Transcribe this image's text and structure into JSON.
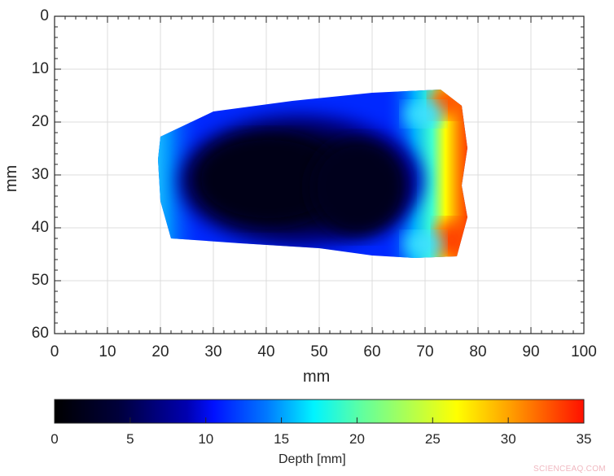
{
  "chart_data": {
    "type": "heatmap",
    "title": "",
    "xlabel": "mm",
    "ylabel": "mm",
    "xlim": [
      0,
      100
    ],
    "ylim": [
      0,
      60
    ],
    "y_reversed": true,
    "grid": true,
    "x_ticks": [
      "0",
      "10",
      "20",
      "30",
      "40",
      "50",
      "60",
      "70",
      "80",
      "90",
      "100"
    ],
    "y_ticks": [
      "0",
      "10",
      "20",
      "30",
      "40",
      "50",
      "60"
    ],
    "colorbar": {
      "label": "Depth [mm]",
      "range": [
        0,
        35
      ],
      "ticks": [
        "0",
        "5",
        "10",
        "15",
        "20",
        "25",
        "30",
        "35"
      ],
      "colormap": "jet-like (black at 0 → blue → cyan → yellow → red at 35)",
      "position": "bottom"
    },
    "region": {
      "description": "Irregular depth map of a defect; deep (near 0 mm, black) core ~x 25–65 mm, y 20–42 mm; edges shallow (blue/cyan); right edge ~x 72–78 mm reaches 30–35 mm (red/orange)",
      "outline_mm": [
        [
          20,
          23
        ],
        [
          30,
          18
        ],
        [
          45,
          16
        ],
        [
          60,
          14.5
        ],
        [
          73,
          14
        ],
        [
          77,
          17
        ],
        [
          78,
          25
        ],
        [
          77,
          32
        ],
        [
          78,
          38
        ],
        [
          76,
          45
        ],
        [
          68,
          46
        ],
        [
          60,
          45.5
        ],
        [
          50,
          44
        ],
        [
          35,
          43
        ],
        [
          22,
          42
        ],
        [
          20,
          35
        ],
        [
          19.5,
          27
        ]
      ],
      "approx_depth_zones_mm": [
        {
          "zone": "core",
          "x": [
            28,
            65
          ],
          "y": [
            22,
            42
          ],
          "depth": [
            0,
            3
          ]
        },
        {
          "zone": "rim",
          "x": [
            20,
            72
          ],
          "y": [
            15,
            46
          ],
          "depth": [
            5,
            15
          ]
        },
        {
          "zone": "right-edge",
          "x": [
            72,
            78
          ],
          "y": [
            14,
            46
          ],
          "depth": [
            25,
            35
          ]
        }
      ]
    }
  },
  "axes": {
    "xlabel": "mm",
    "ylabel": "mm",
    "x_ticks": [
      "0",
      "10",
      "20",
      "30",
      "40",
      "50",
      "60",
      "70",
      "80",
      "90",
      "100"
    ],
    "y_ticks": [
      "0",
      "10",
      "20",
      "30",
      "40",
      "50",
      "60"
    ]
  },
  "colorbar": {
    "label": "Depth [mm]",
    "ticks": [
      "0",
      "5",
      "10",
      "15",
      "20",
      "25",
      "30",
      "35"
    ]
  },
  "watermark": "SCIENCEAQ.COM"
}
